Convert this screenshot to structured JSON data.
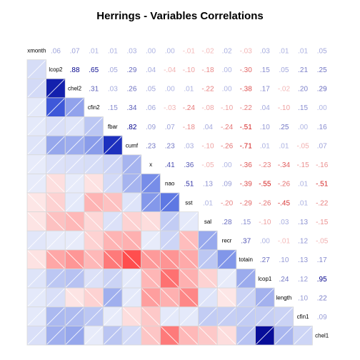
{
  "chart_data": {
    "type": "heatmap",
    "title": "Herrings - Variables Correlations",
    "variables": [
      "xmonth",
      "lcop2",
      "chel2",
      "cfin2",
      "fbar",
      "cumf",
      "x",
      "nao",
      "sst",
      "sal",
      "recr",
      "totain",
      "lcop1",
      "length",
      "cfin1",
      "chel1"
    ],
    "matrix": [
      [
        1,
        0.06,
        0.07,
        0.01,
        0.01,
        0.03,
        0.0,
        0.0,
        -0.01,
        -0.02,
        0.02,
        -0.03,
        0.03,
        0.01,
        0.01,
        0.05
      ],
      [
        0.06,
        1,
        0.88,
        0.65,
        0.05,
        0.29,
        0.04,
        -0.04,
        -0.1,
        -0.18,
        0.0,
        -0.3,
        0.15,
        0.05,
        0.21,
        0.25
      ],
      [
        0.07,
        0.88,
        1,
        0.31,
        0.03,
        0.26,
        0.05,
        0.0,
        0.01,
        -0.22,
        0.0,
        -0.38,
        0.17,
        -0.02,
        0.2,
        0.29
      ],
      [
        0.01,
        0.65,
        0.31,
        1,
        0.15,
        0.34,
        0.06,
        -0.03,
        -0.24,
        -0.08,
        -0.1,
        -0.22,
        0.04,
        -0.1,
        0.15,
        0.0
      ],
      [
        0.01,
        0.05,
        0.03,
        0.15,
        1,
        0.82,
        0.09,
        0.07,
        -0.18,
        0.04,
        -0.24,
        -0.51,
        0.1,
        0.25,
        0.0,
        0.16
      ],
      [
        0.03,
        0.29,
        0.26,
        0.34,
        0.82,
        1,
        0.23,
        0.23,
        0.03,
        -0.1,
        -0.26,
        -0.71,
        0.01,
        0.01,
        -0.05,
        0.07
      ],
      [
        0.0,
        0.04,
        0.05,
        0.06,
        0.09,
        0.23,
        1,
        0.41,
        0.36,
        -0.05,
        0.0,
        -0.36,
        -0.23,
        -0.34,
        -0.15,
        -0.16
      ],
      [
        0.0,
        -0.04,
        0.0,
        -0.03,
        0.07,
        0.23,
        0.41,
        1,
        0.51,
        0.13,
        0.09,
        -0.39,
        -0.55,
        -0.26,
        0.01,
        -0.51
      ],
      [
        -0.01,
        -0.1,
        0.01,
        -0.24,
        -0.18,
        0.03,
        0.36,
        0.51,
        1,
        0.01,
        -0.2,
        -0.29,
        -0.26,
        -0.45,
        0.01,
        -0.22
      ],
      [
        -0.02,
        -0.18,
        -0.22,
        -0.08,
        0.04,
        -0.1,
        -0.05,
        0.13,
        0.01,
        1,
        0.28,
        0.15,
        -0.1,
        0.03,
        0.13,
        -0.15
      ],
      [
        0.02,
        0.0,
        0.0,
        -0.1,
        -0.24,
        -0.26,
        0.0,
        0.09,
        -0.2,
        0.28,
        1,
        0.37,
        0.0,
        -0.01,
        0.12,
        -0.05
      ],
      [
        -0.03,
        -0.3,
        -0.38,
        -0.22,
        -0.51,
        -0.71,
        -0.36,
        -0.39,
        -0.29,
        0.15,
        0.37,
        1,
        0.27,
        0.1,
        0.13,
        0.17
      ],
      [
        0.03,
        0.15,
        0.17,
        0.04,
        0.1,
        0.01,
        -0.23,
        -0.55,
        -0.26,
        -0.1,
        0.0,
        0.27,
        1,
        0.24,
        0.12,
        0.95
      ],
      [
        0.01,
        0.05,
        -0.02,
        -0.1,
        0.25,
        0.01,
        -0.34,
        -0.26,
        -0.45,
        0.03,
        -0.01,
        0.1,
        0.24,
        1,
        0.1,
        0.22
      ],
      [
        0.01,
        0.21,
        0.2,
        0.15,
        0.0,
        -0.05,
        -0.15,
        0.01,
        0.01,
        0.13,
        0.12,
        0.13,
        0.12,
        0.1,
        1,
        0.09
      ],
      [
        0.05,
        0.25,
        0.29,
        0.0,
        0.16,
        0.07,
        -0.16,
        -0.51,
        -0.22,
        -0.15,
        -0.05,
        0.17,
        0.95,
        0.22,
        0.09,
        1
      ]
    ],
    "upper_triangle": "coefficients",
    "lower_triangle": "shades",
    "diagonal": "variable names",
    "colors": {
      "negative": "#ff3b3b",
      "neutral": "#ffffff",
      "positive": "#00008b",
      "cell_border": "#d9d9d9"
    }
  }
}
